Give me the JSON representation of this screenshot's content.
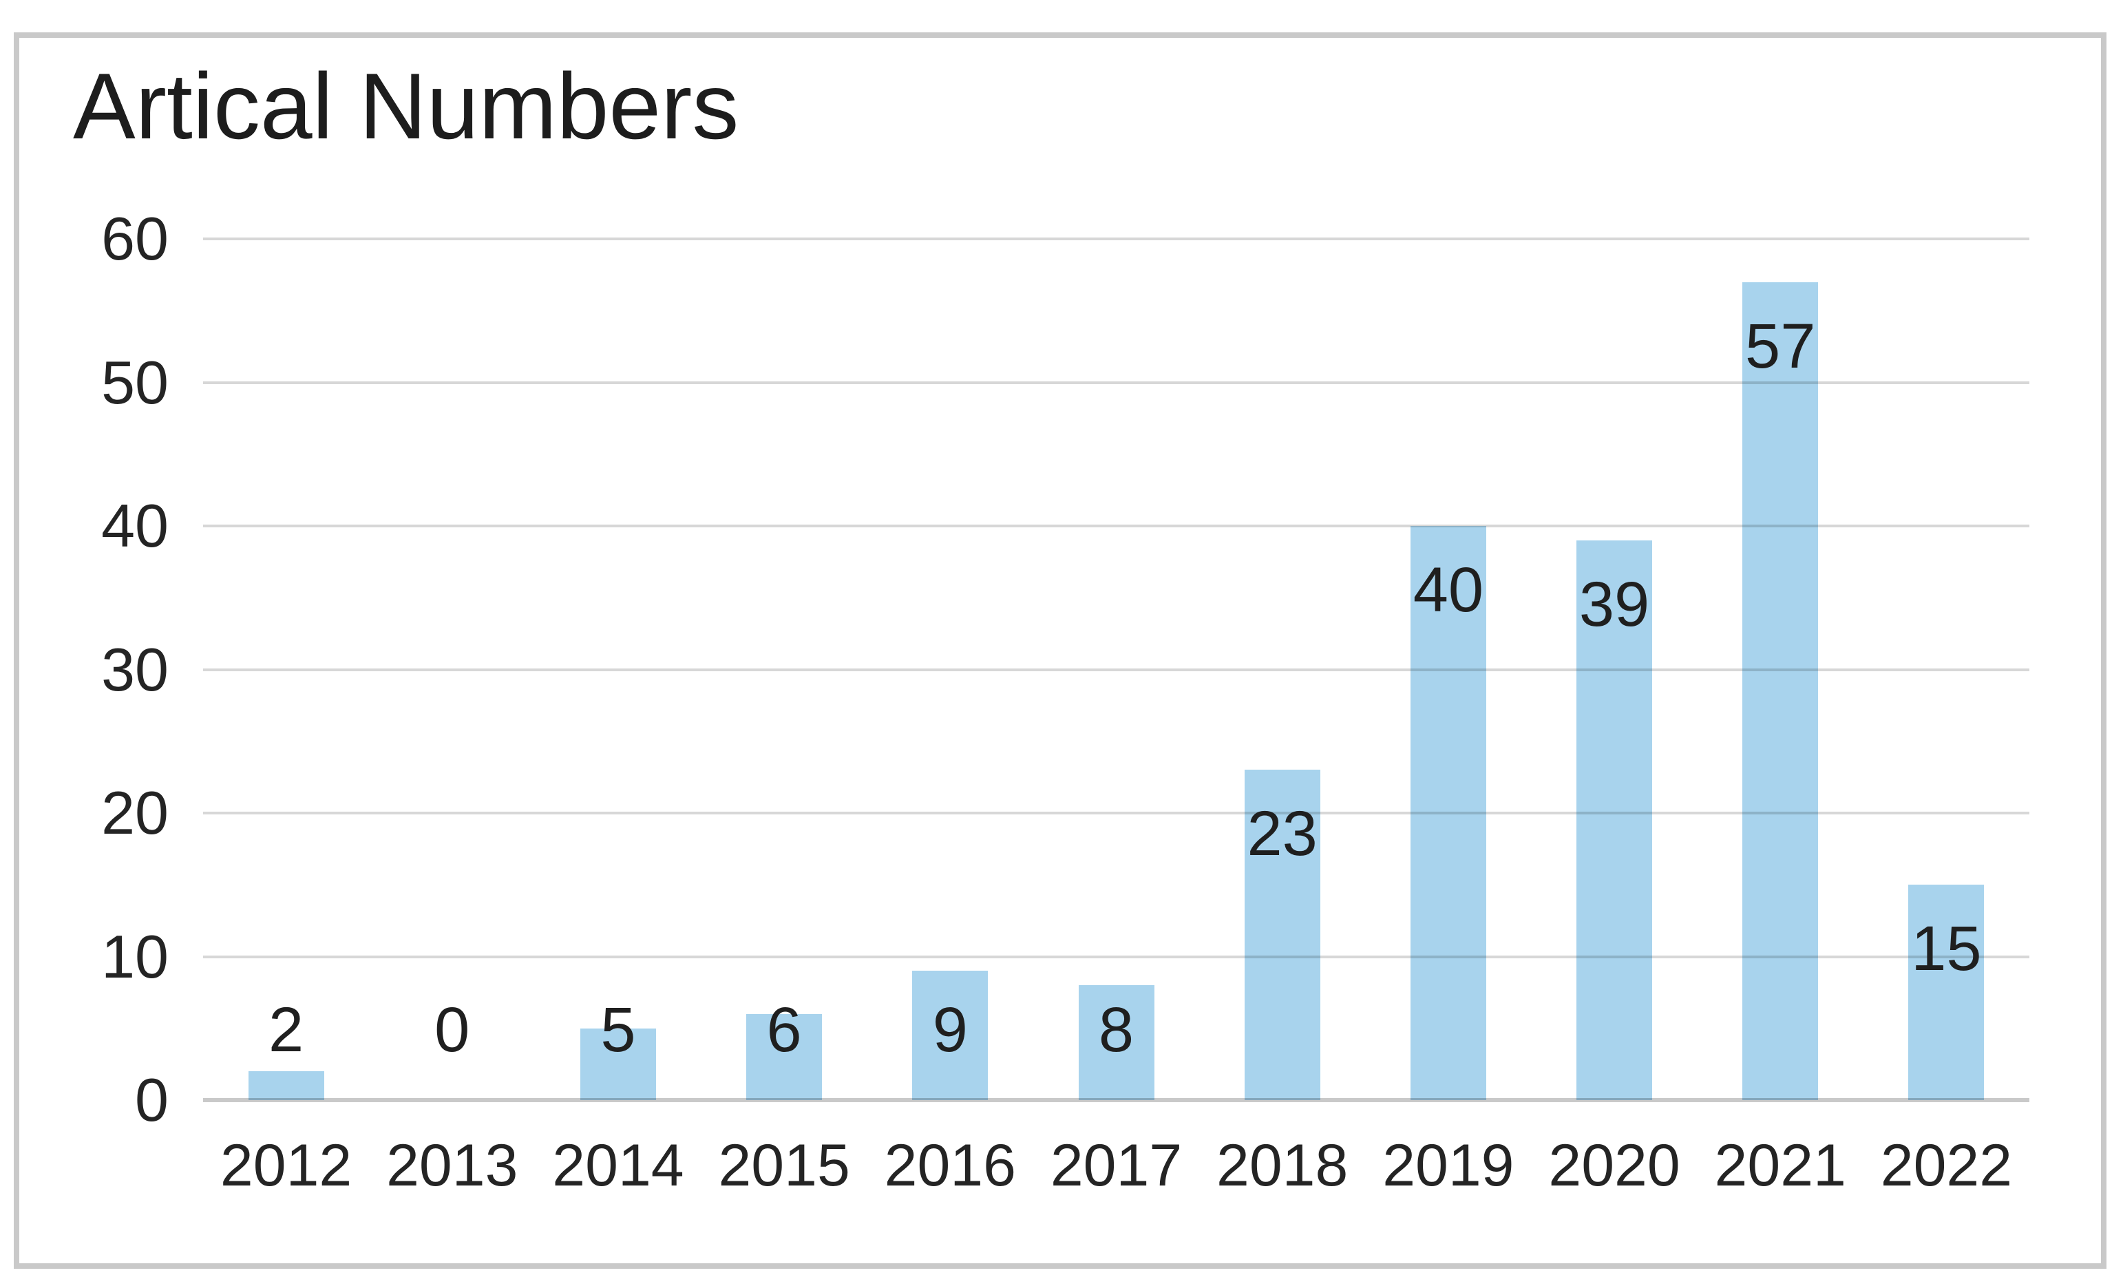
{
  "chart_data": {
    "type": "bar",
    "title": "Artical Numbers",
    "categories": [
      "2012",
      "2013",
      "2014",
      "2015",
      "2016",
      "2017",
      "2018",
      "2019",
      "2020",
      "2021",
      "2022"
    ],
    "values": [
      2,
      0,
      5,
      6,
      9,
      8,
      23,
      40,
      39,
      57,
      15
    ],
    "xlabel": "",
    "ylabel": "",
    "ylim": [
      0,
      60
    ],
    "yticks": [
      0,
      10,
      20,
      30,
      40,
      50,
      60
    ],
    "grid": true,
    "legend": "none",
    "data_label_style": "values shown on every bar; inside top of tall bars, above short bars",
    "colors": {
      "bar": "#a8d3ed",
      "gridline": "#d6d6d6",
      "axis_line": "#c9c9c9",
      "frame_border": "#c9c9c9",
      "text": "#242424",
      "background": "#ffffff"
    }
  }
}
